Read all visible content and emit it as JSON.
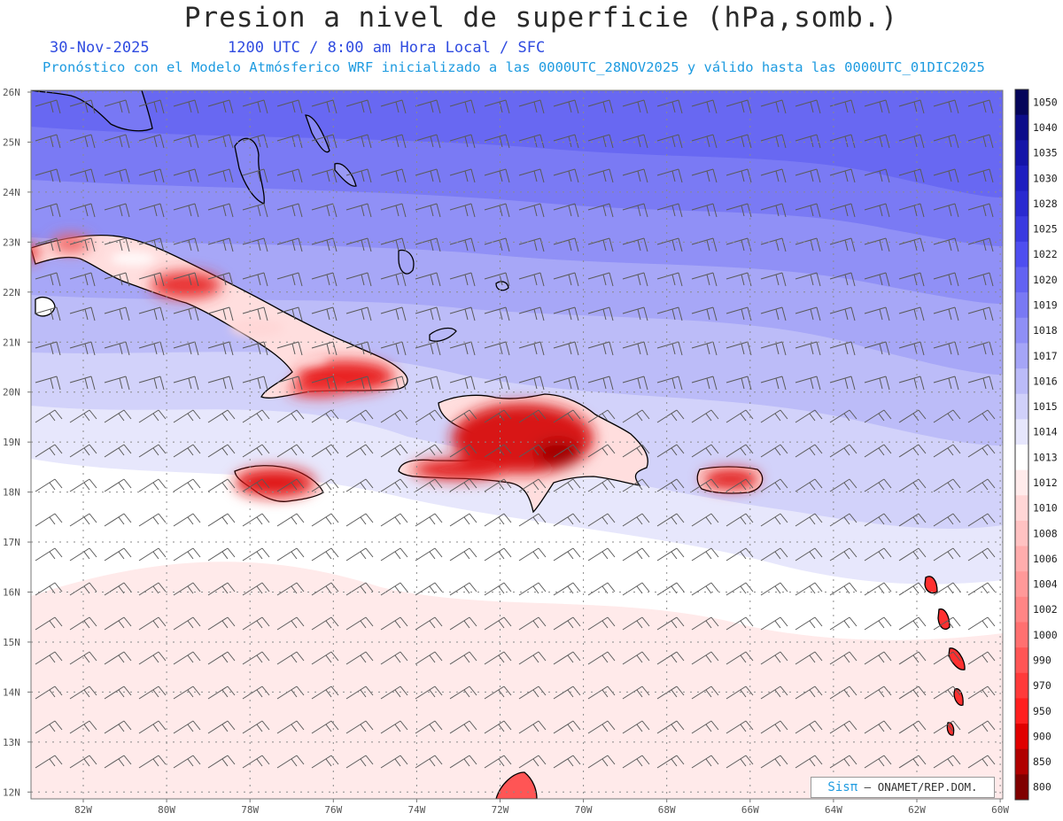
{
  "header": {
    "title": "Presion a nivel de superficie (hPa,somb.)",
    "date": "30-Nov-2025",
    "time_info": "1200 UTC / 8:00 am Hora Local / SFC",
    "description": "Pronóstico con el Modelo Atmósferico WRF inicializado a las 0000UTC_28NOV2025 y válido hasta las  0000UTC_01DIC2025"
  },
  "map": {
    "lat_labels": [
      "26N",
      "25N",
      "24N",
      "23N",
      "22N",
      "21N",
      "20N",
      "19N",
      "18N",
      "17N",
      "16N",
      "15N",
      "14N",
      "13N",
      "12N"
    ],
    "lon_labels": [
      "82W",
      "80W",
      "78W",
      "76W",
      "74W",
      "72W",
      "70W",
      "68W",
      "66W",
      "64W",
      "62W",
      "60W"
    ],
    "colors": {
      "land": "#ffffff",
      "coast": "#000000",
      "grid": "#999999",
      "barb": "#555555"
    }
  },
  "colorbar": {
    "levels": [
      "1050",
      "1040",
      "1035",
      "1030",
      "1028",
      "1025",
      "1022",
      "1020",
      "1019",
      "1018",
      "1017",
      "1016",
      "1015",
      "1014",
      "1013",
      "1012",
      "1010",
      "1008",
      "1006",
      "1004",
      "1002",
      "1000",
      "990",
      "970",
      "950",
      "900",
      "850",
      "800"
    ],
    "colors": [
      "#05055a",
      "#0d0d8a",
      "#1414a8",
      "#1e1ec0",
      "#2a2ad0",
      "#3a3ae0",
      "#4e4ef0",
      "#6363f2",
      "#7979f4",
      "#8f8ff6",
      "#a5a5f7",
      "#bbbbf8",
      "#d0d0fa",
      "#e6e6fc",
      "#ffffff",
      "#ffebeb",
      "#ffd6d6",
      "#ffc2c2",
      "#ffadad",
      "#ff9999",
      "#ff8585",
      "#ff7070",
      "#ff5555",
      "#ff3a3a",
      "#ff1f1f",
      "#e00000",
      "#b00000",
      "#800000"
    ]
  },
  "credit": {
    "logo": "Sisπ",
    "text": " – ONAMET/REP.DOM."
  }
}
